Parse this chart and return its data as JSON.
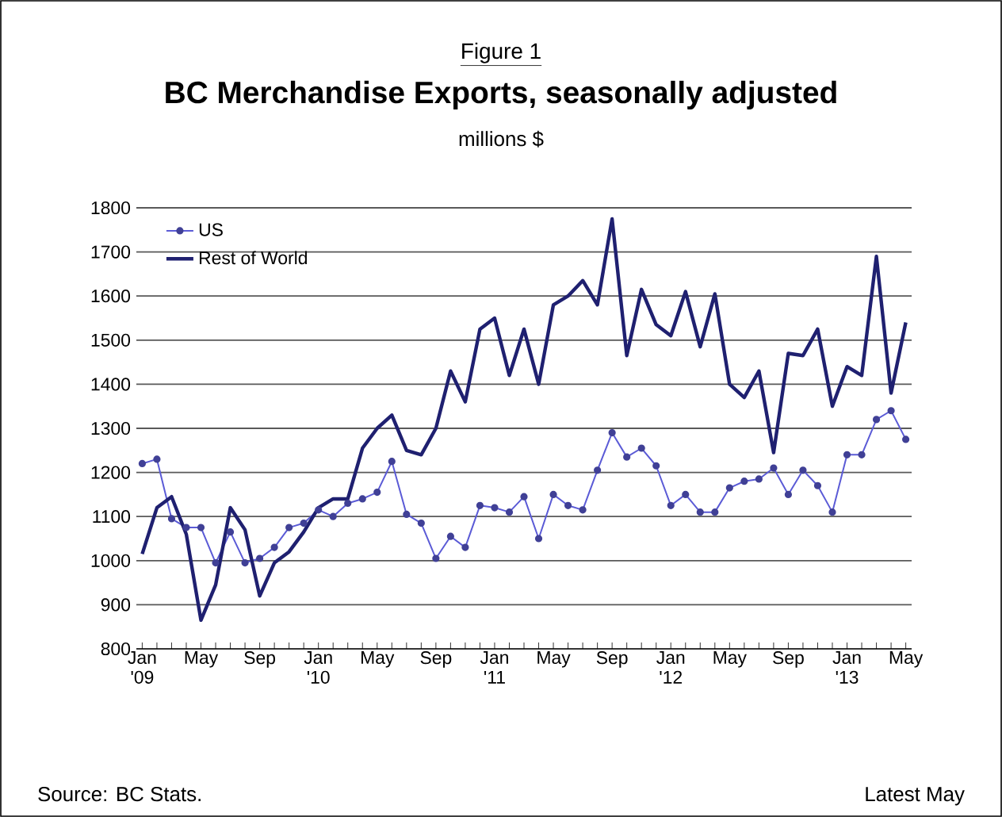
{
  "chart_data": {
    "type": "line",
    "title": "BC Merchandise Exports, seasonally adjusted",
    "subtitle": "millions $",
    "annotations": [
      "Figure 1",
      "Source: BC Stats.",
      "Latest May"
    ],
    "categories": [
      "Jan '09",
      null,
      null,
      null,
      "May",
      null,
      null,
      null,
      "Sep",
      null,
      null,
      null,
      "Jan '10",
      null,
      null,
      null,
      "May",
      null,
      null,
      null,
      "Sep",
      null,
      null,
      null,
      "Jan '11",
      null,
      null,
      null,
      "May",
      null,
      null,
      null,
      "Sep",
      null,
      null,
      null,
      "Jan '12",
      null,
      null,
      null,
      "May",
      null,
      null,
      null,
      "Sep",
      null,
      null,
      null,
      "Jan '13",
      null,
      null,
      null,
      "May"
    ],
    "series": [
      {
        "name": "US",
        "color": "#5b5bd6",
        "marker": "circle",
        "values": [
          1220,
          1230,
          1095,
          1075,
          1075,
          995,
          1065,
          995,
          1005,
          1030,
          1075,
          1085,
          1115,
          1100,
          1130,
          1140,
          1155,
          1225,
          1105,
          1085,
          1005,
          1055,
          1030,
          1125,
          1120,
          1110,
          1145,
          1050,
          1150,
          1125,
          1115,
          1205,
          1290,
          1235,
          1255,
          1215,
          1125,
          1150,
          1110,
          1110,
          1165,
          1180,
          1185,
          1210,
          1150,
          1205,
          1170,
          1110,
          1240,
          1240,
          1320,
          1340,
          1275
        ]
      },
      {
        "name": "Rest of World",
        "color": "#1f2070",
        "marker": "none",
        "values": [
          1015,
          1120,
          1145,
          1060,
          865,
          945,
          1120,
          1070,
          920,
          995,
          1020,
          1065,
          1120,
          1140,
          1140,
          1255,
          1300,
          1330,
          1250,
          1240,
          1300,
          1430,
          1360,
          1525,
          1550,
          1420,
          1525,
          1400,
          1580,
          1600,
          1635,
          1580,
          1775,
          1465,
          1615,
          1535,
          1510,
          1610,
          1485,
          1605,
          1400,
          1370,
          1430,
          1245,
          1470,
          1465,
          1525,
          1350,
          1440,
          1420,
          1690,
          1380,
          1540
        ]
      }
    ],
    "ylim": [
      800,
      1800
    ],
    "yticks": [
      800,
      900,
      1000,
      1100,
      1200,
      1300,
      1400,
      1500,
      1600,
      1700,
      1800
    ],
    "grid": "y",
    "legend": "top left"
  }
}
